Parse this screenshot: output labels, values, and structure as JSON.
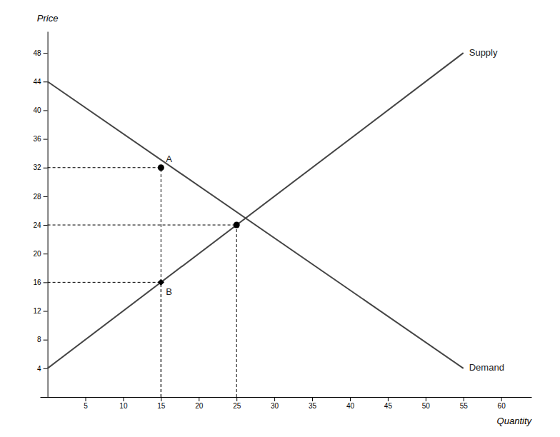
{
  "chart_data": {
    "type": "line",
    "xlabel": "Quantity",
    "ylabel": "Price",
    "xlim": [
      -1,
      64
    ],
    "ylim": [
      0,
      51
    ],
    "xticks": [
      5,
      10,
      15,
      20,
      25,
      30,
      35,
      40,
      45,
      50,
      55,
      60
    ],
    "yticks": [
      4,
      8,
      12,
      16,
      20,
      24,
      28,
      32,
      36,
      40,
      44,
      48
    ],
    "series": [
      {
        "name": "Supply",
        "color": "#444444",
        "x": [
          0,
          55
        ],
        "values": [
          4,
          48
        ]
      },
      {
        "name": "Demand",
        "color": "#444444",
        "x": [
          0,
          55
        ],
        "values": [
          44,
          4
        ]
      }
    ],
    "points": [
      {
        "text": "A",
        "x": 15,
        "y": 32,
        "marker": "circle",
        "color": "#000000"
      },
      {
        "text": "B",
        "x": 15,
        "y": 16,
        "marker": "diamond",
        "color": "#000000"
      },
      {
        "x": 25,
        "y": 24,
        "marker": "circle",
        "color": "#000000"
      }
    ]
  }
}
